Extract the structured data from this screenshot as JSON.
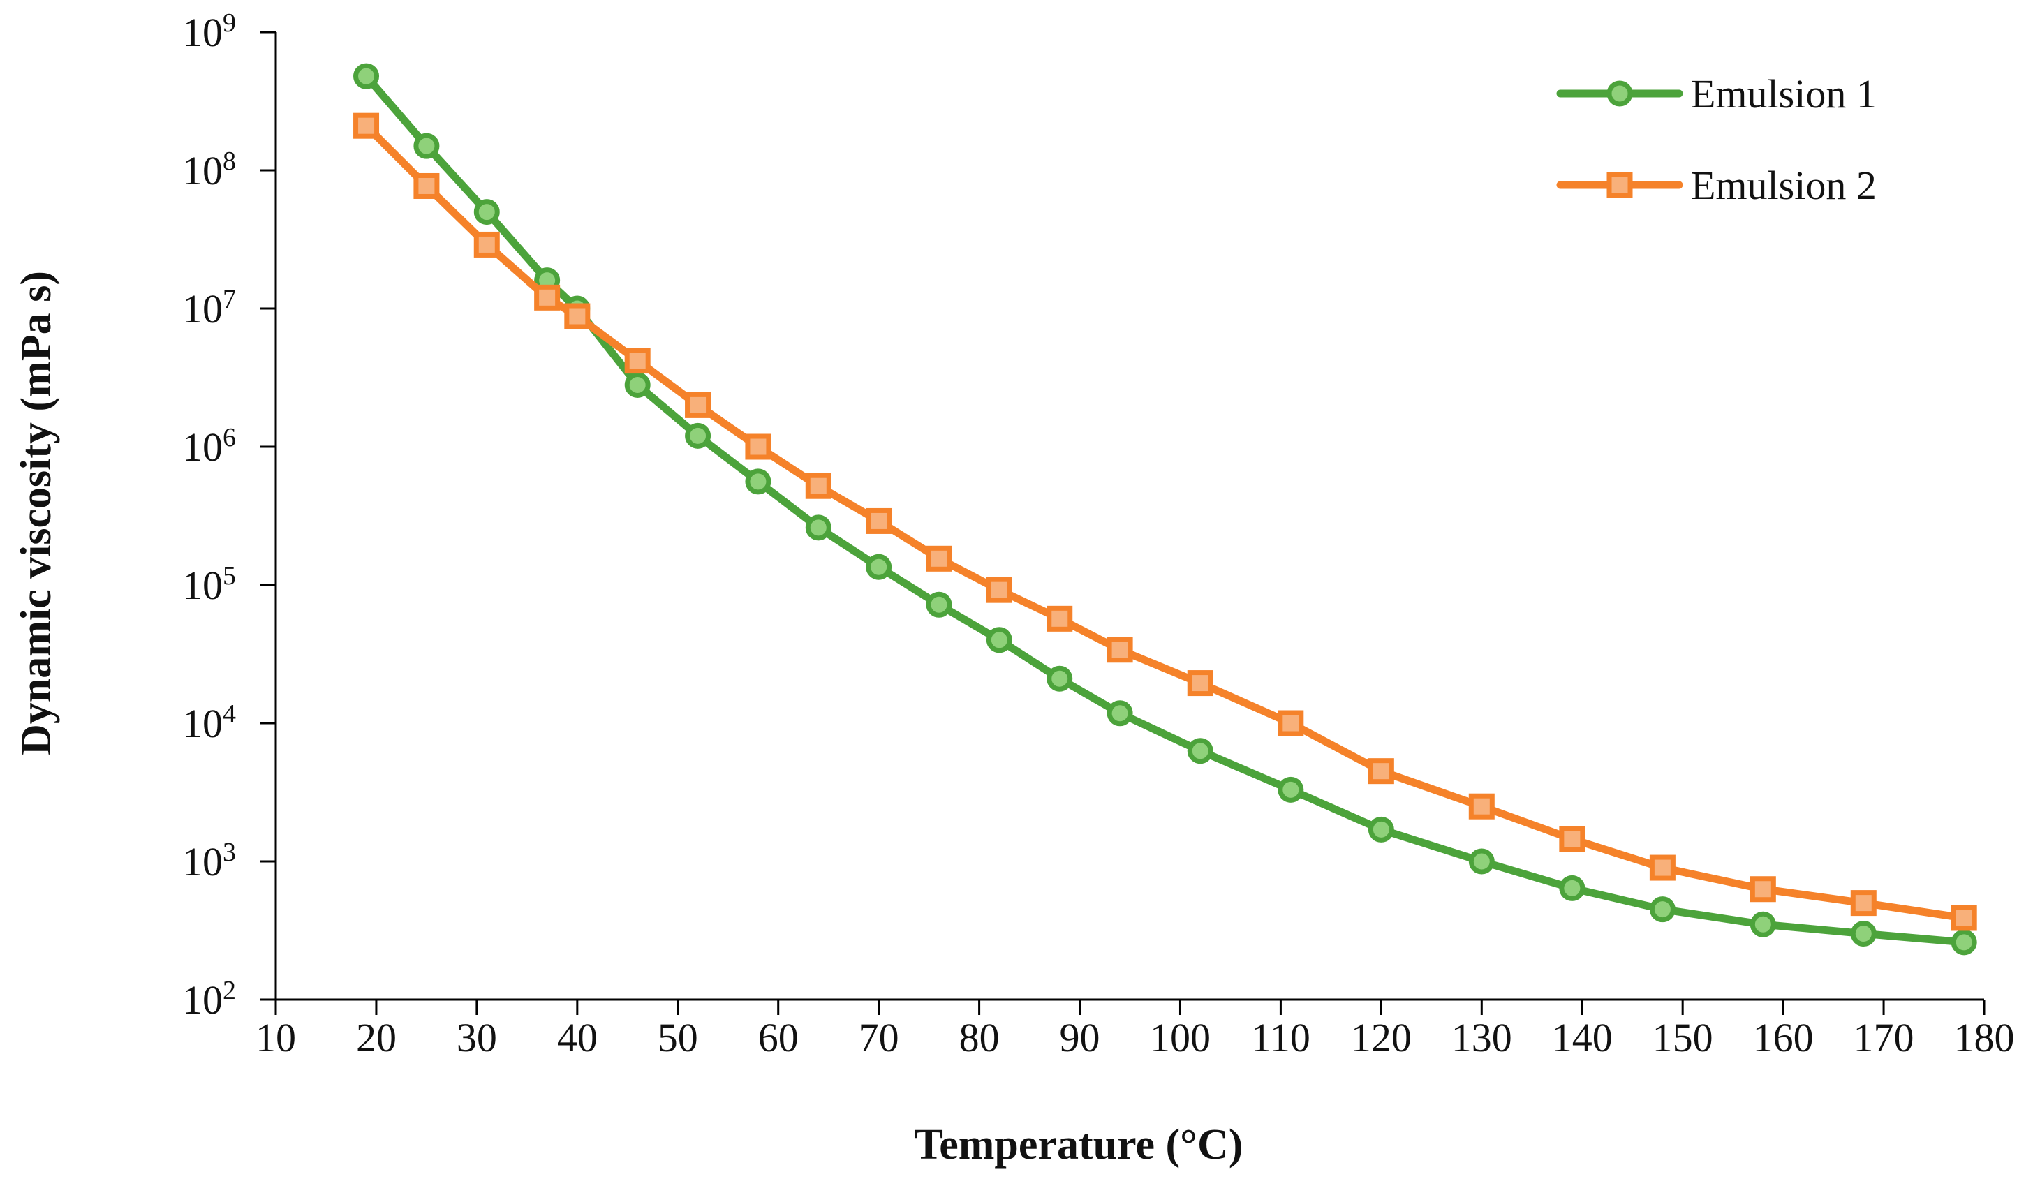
{
  "chart_data": {
    "type": "line",
    "title": "",
    "xlabel": "Temperature (°C)",
    "ylabel": "Dynamic viscosity (mPa s)",
    "xlim": [
      10,
      180
    ],
    "xticks": [
      "10",
      "20",
      "30",
      "40",
      "50",
      "60",
      "70",
      "80",
      "90",
      "100",
      "110",
      "120",
      "130",
      "140",
      "150",
      "160",
      "170",
      "180"
    ],
    "yscale": "log",
    "ylim": [
      100,
      1000000000
    ],
    "yticks": [
      {
        "base": "10",
        "exp": "2"
      },
      {
        "base": "10",
        "exp": "3"
      },
      {
        "base": "10",
        "exp": "4"
      },
      {
        "base": "10",
        "exp": "5"
      },
      {
        "base": "10",
        "exp": "6"
      },
      {
        "base": "10",
        "exp": "7"
      },
      {
        "base": "10",
        "exp": "8"
      },
      {
        "base": "10",
        "exp": "9"
      }
    ],
    "grid": false,
    "legend_position": "top-right",
    "series": [
      {
        "name": "Emulsion 1",
        "color": "#4CA33B",
        "marker": "circle",
        "marker_fill": "#8FD17A",
        "x": [
          19,
          25,
          31,
          37,
          40,
          46,
          52,
          58,
          64,
          70,
          76,
          82,
          88,
          94,
          102,
          111,
          120,
          130,
          139,
          148,
          158,
          168,
          178
        ],
        "values": [
          480000000,
          150000000,
          50000000,
          16000000,
          10000000,
          2800000,
          1200000,
          560000,
          260000,
          135000,
          72000,
          40000,
          21000,
          11800,
          6300,
          3300,
          1700,
          1000,
          640,
          450,
          350,
          300,
          260
        ]
      },
      {
        "name": "Emulsion 2",
        "color": "#F5822A",
        "marker": "square",
        "marker_fill": "#F8B07A",
        "x": [
          19,
          25,
          31,
          37,
          40,
          46,
          52,
          58,
          64,
          70,
          76,
          82,
          88,
          94,
          102,
          111,
          120,
          130,
          139,
          148,
          158,
          168,
          178
        ],
        "values": [
          210000000,
          77000000,
          29000000,
          12000000,
          8800000,
          4200000,
          2000000,
          1000000,
          520000,
          290000,
          155000,
          92000,
          57000,
          34000,
          19500,
          10000,
          4500,
          2500,
          1450,
          900,
          630,
          500,
          390
        ]
      }
    ]
  }
}
